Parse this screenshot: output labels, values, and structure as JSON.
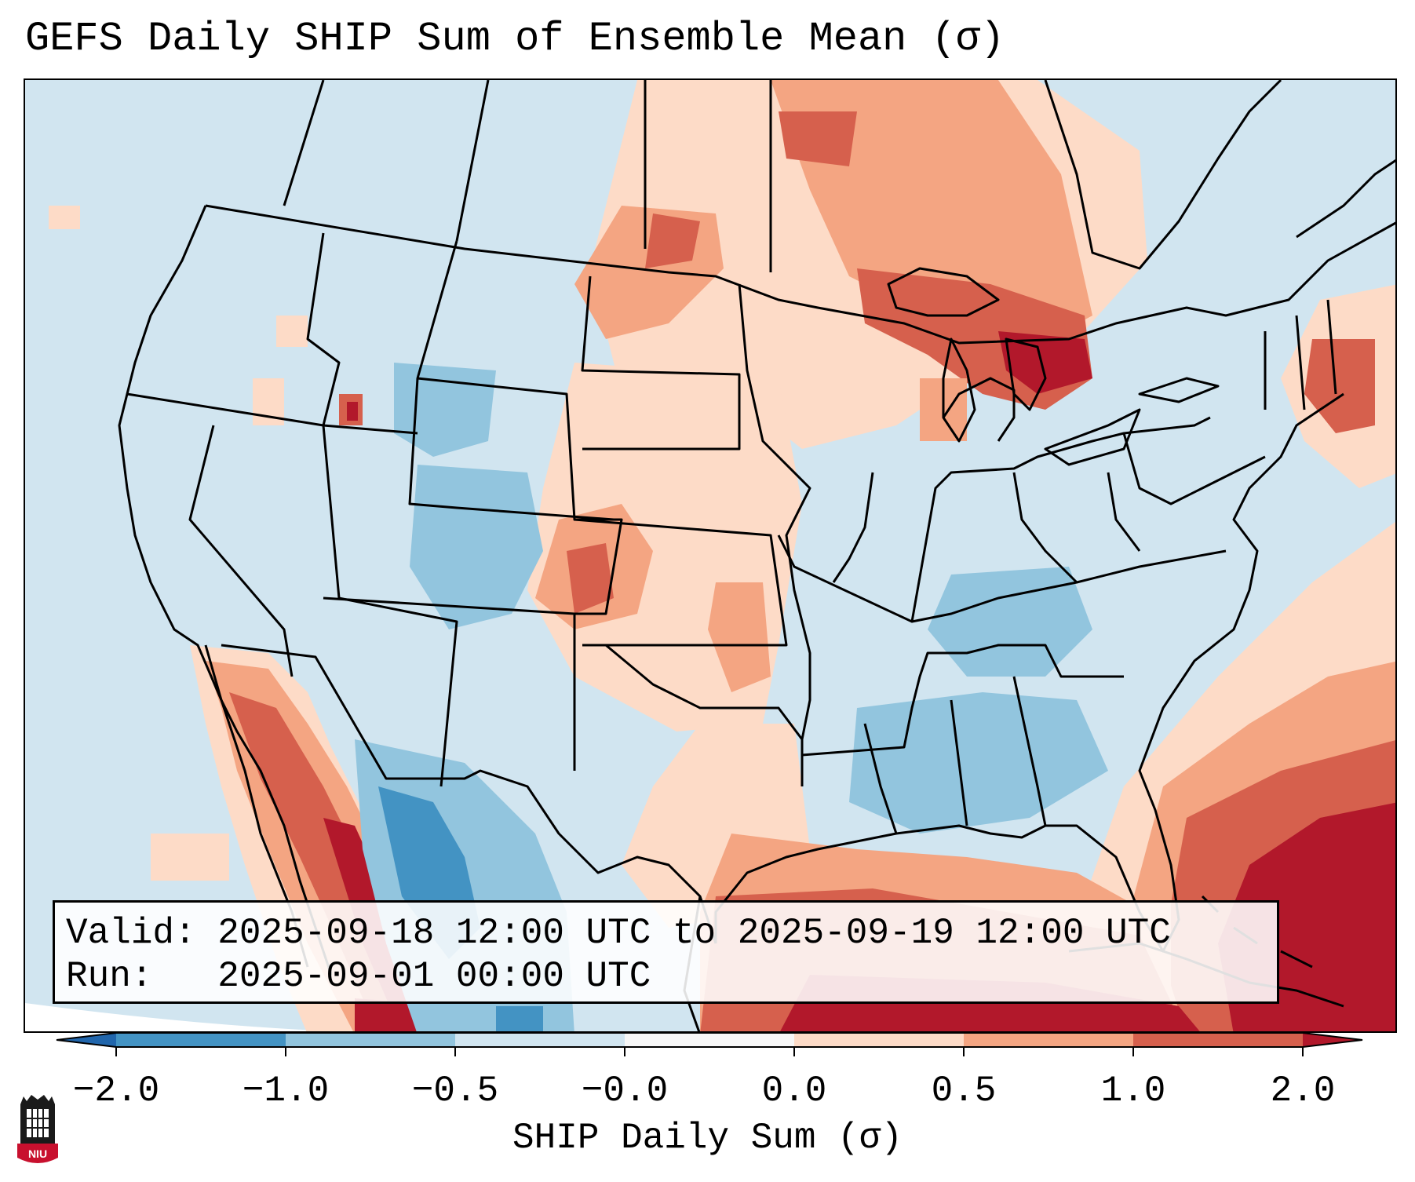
{
  "title": "GEFS Daily SHIP Sum of Ensemble Mean (σ)",
  "info": {
    "valid_label": "Valid:",
    "valid_value": "2025-09-18 12:00 UTC to 2025-09-19 12:00 UTC",
    "run_label": "Run:",
    "run_value": "2025-09-01 00:00 UTC"
  },
  "colorbar": {
    "label": "SHIP Daily Sum (σ)",
    "ticks": [
      "−2.0",
      "−1.0",
      "−0.5",
      "−0.0",
      "0.0",
      "0.5",
      "1.0",
      "2.0"
    ],
    "colors": {
      "under": "#2166ac",
      "b1": "#4393c3",
      "b2": "#92c5de",
      "b3": "#d1e5f0",
      "b4": "#f7f7f7",
      "b5": "#fddbc7",
      "b6": "#f4a582",
      "b7": "#d6604d",
      "over": "#b2182b"
    }
  },
  "logo": {
    "text": "NIU",
    "colors": {
      "shield": "#c8102e",
      "tower": "#1a1a1a"
    }
  }
}
